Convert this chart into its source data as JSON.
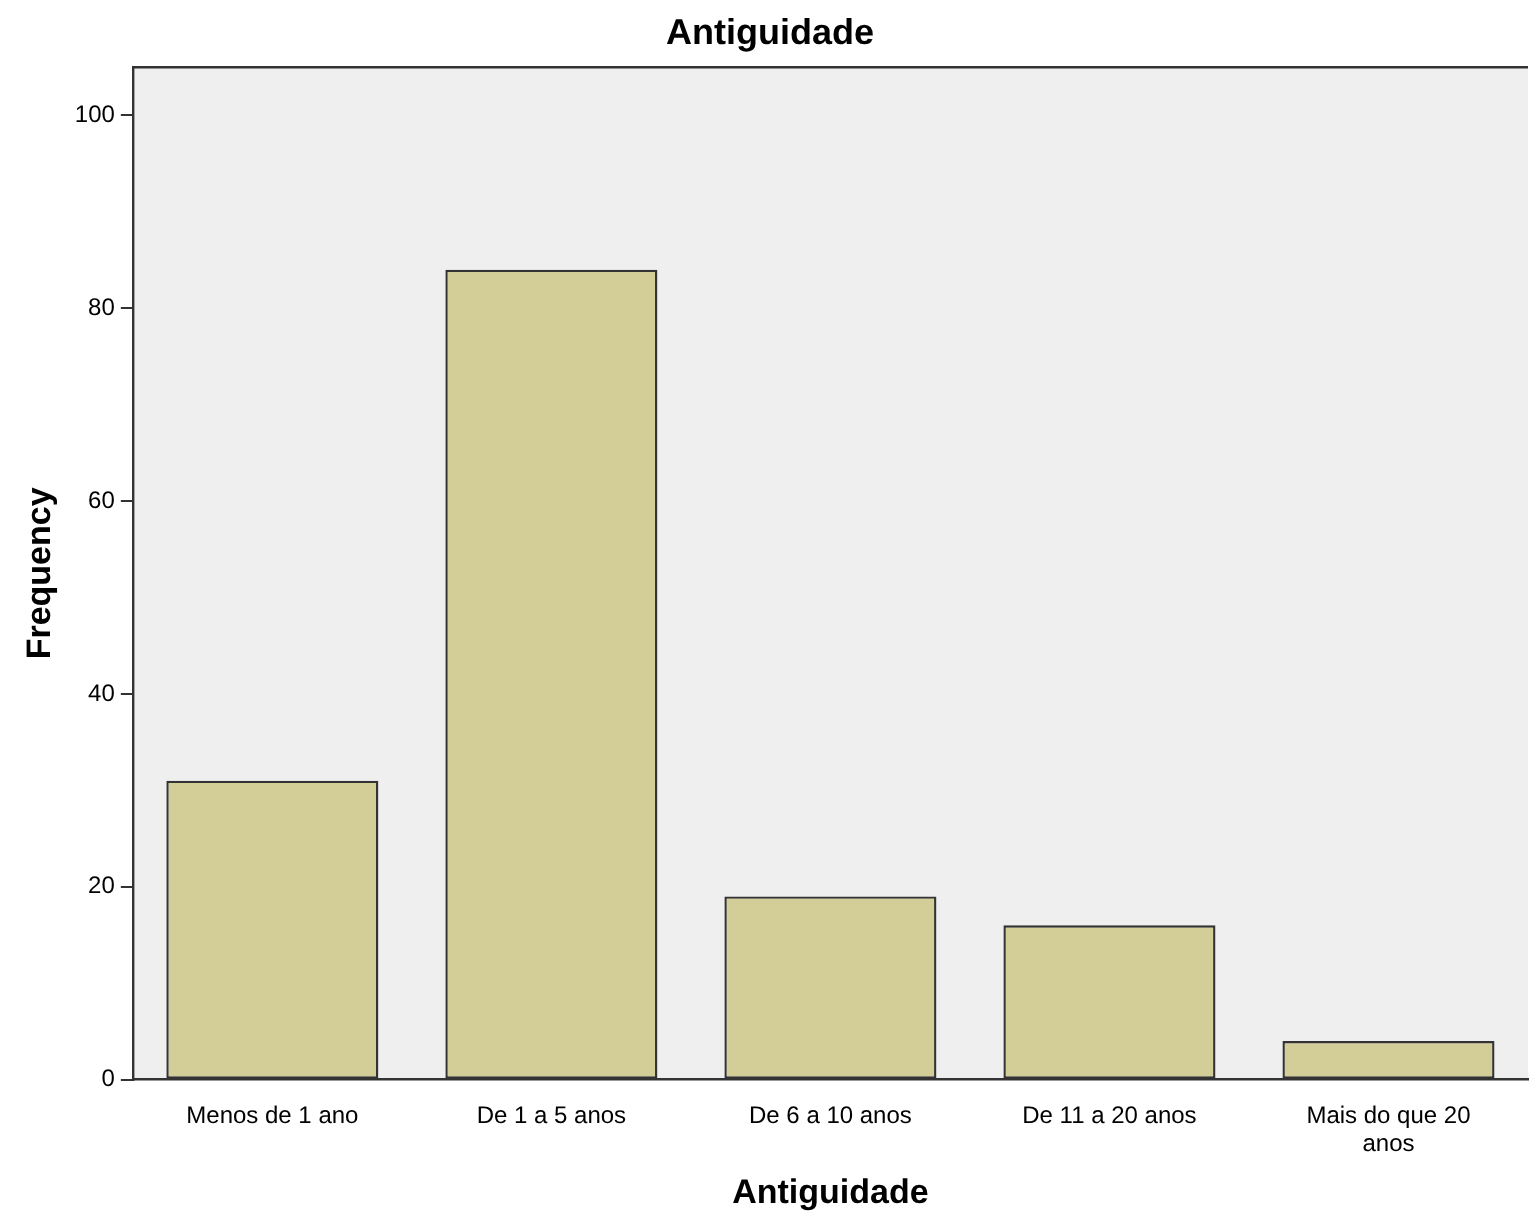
{
  "chart_data": {
    "type": "bar",
    "title": "Antiguidade",
    "xlabel": "Antiguidade",
    "ylabel": "Frequency",
    "categories": [
      "Menos de 1 ano",
      "De 1 a 5 anos",
      "De 6 a 10 anos",
      "De 11 a 20 anos",
      "Mais do que 20 anos"
    ],
    "values": [
      31,
      84,
      19,
      16,
      4
    ],
    "color": "#d3ce97",
    "ylim": [
      0,
      105
    ],
    "yticks": [
      0,
      20,
      40,
      60,
      80,
      100
    ],
    "grid": false,
    "legend": false
  }
}
